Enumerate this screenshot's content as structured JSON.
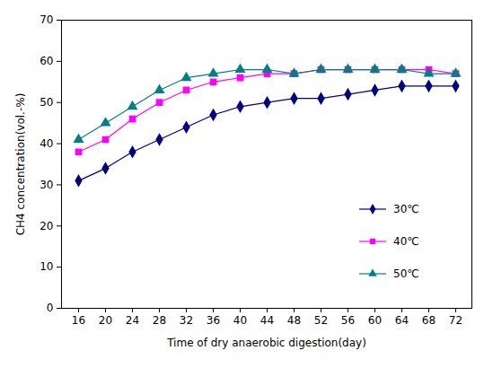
{
  "chart_data": {
    "type": "line",
    "x_label": "Time of dry anaerobic digestion(day)",
    "y_label": "CH4 concentration(vol.-%)",
    "categories": [
      "16",
      "20",
      "24",
      "28",
      "32",
      "36",
      "40",
      "44",
      "48",
      "52",
      "56",
      "60",
      "64",
      "68",
      "72"
    ],
    "series": [
      {
        "name": "30℃",
        "color": "#000080",
        "marker": "diamond",
        "values": [
          31,
          34,
          38,
          41,
          44,
          47,
          49,
          50,
          51,
          51,
          52,
          53,
          54,
          54,
          54
        ]
      },
      {
        "name": "40℃",
        "color": "#FF00FF",
        "marker": "square",
        "values": [
          38,
          41,
          46,
          50,
          53,
          55,
          56,
          57,
          57,
          58,
          58,
          58,
          58,
          58,
          57
        ]
      },
      {
        "name": "50℃",
        "color": "#008080",
        "marker": "triangle",
        "values": [
          41,
          45,
          49,
          53,
          56,
          57,
          58,
          58,
          57,
          58,
          58,
          58,
          58,
          57,
          57
        ]
      }
    ],
    "ylim": [
      0,
      70
    ],
    "yticks": [
      0,
      10,
      20,
      30,
      40,
      50,
      60,
      70
    ],
    "grid": false,
    "legend": "right"
  }
}
